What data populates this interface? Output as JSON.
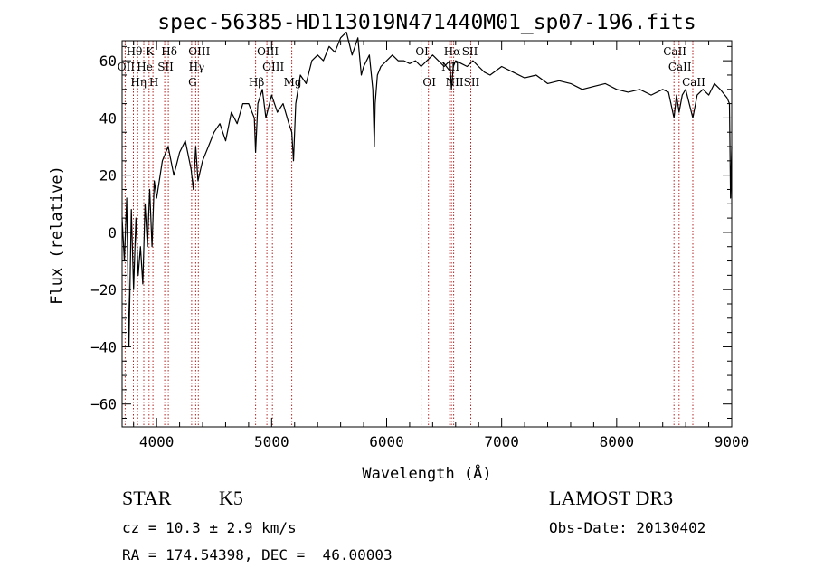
{
  "chart_data": {
    "type": "line",
    "title": "spec-56385-HD113019N471440M01_sp07-196.fits",
    "xlabel": "Wavelength (Å)",
    "ylabel": "Flux (relative)",
    "xlim": [
      3700,
      9000
    ],
    "ylim": [
      -68,
      67
    ],
    "x_ticks": [
      4000,
      5000,
      6000,
      7000,
      8000,
      9000
    ],
    "y_ticks": [
      -60,
      -40,
      -20,
      0,
      20,
      40,
      60
    ],
    "grid": false,
    "series": [
      {
        "name": "flux",
        "color": "#000000",
        "x": [
          3700,
          3720,
          3740,
          3760,
          3780,
          3800,
          3820,
          3840,
          3860,
          3880,
          3900,
          3920,
          3940,
          3960,
          3980,
          4000,
          4050,
          4100,
          4150,
          4200,
          4250,
          4300,
          4320,
          4340,
          4360,
          4400,
          4450,
          4500,
          4550,
          4600,
          4650,
          4700,
          4750,
          4800,
          4850,
          4861,
          4880,
          4920,
          4950,
          5000,
          5050,
          5100,
          5150,
          5175,
          5190,
          5210,
          5250,
          5300,
          5350,
          5400,
          5450,
          5500,
          5550,
          5600,
          5650,
          5700,
          5750,
          5780,
          5800,
          5850,
          5880,
          5893,
          5900,
          5920,
          5950,
          6000,
          6050,
          6100,
          6150,
          6200,
          6250,
          6300,
          6350,
          6400,
          6450,
          6500,
          6550,
          6563,
          6580,
          6600,
          6650,
          6700,
          6750,
          6800,
          6850,
          6900,
          7000,
          7100,
          7200,
          7300,
          7400,
          7500,
          7600,
          7700,
          7800,
          7900,
          8000,
          8100,
          8200,
          8300,
          8400,
          8450,
          8498,
          8520,
          8542,
          8570,
          8600,
          8662,
          8700,
          8750,
          8800,
          8850,
          8900,
          8940,
          8960,
          8980,
          8990,
          9000
        ],
        "y": [
          5,
          -10,
          12,
          -40,
          8,
          -20,
          5,
          -15,
          -5,
          -18,
          10,
          -5,
          15,
          -5,
          18,
          12,
          25,
          30,
          20,
          28,
          32,
          22,
          15,
          30,
          18,
          25,
          30,
          35,
          38,
          32,
          42,
          38,
          45,
          45,
          40,
          28,
          45,
          50,
          40,
          48,
          42,
          45,
          38,
          35,
          25,
          45,
          55,
          52,
          60,
          62,
          60,
          65,
          63,
          68,
          70,
          62,
          68,
          55,
          58,
          62,
          50,
          30,
          45,
          55,
          58,
          60,
          62,
          60,
          60,
          59,
          60,
          58,
          60,
          62,
          60,
          58,
          60,
          50,
          58,
          60,
          59,
          58,
          60,
          58,
          56,
          55,
          58,
          56,
          54,
          55,
          52,
          53,
          52,
          50,
          51,
          52,
          50,
          49,
          50,
          48,
          50,
          49,
          40,
          48,
          42,
          48,
          50,
          40,
          48,
          50,
          48,
          52,
          50,
          48,
          47,
          45,
          12,
          30
        ]
      }
    ],
    "line_labels": [
      {
        "label": "Hθ",
        "x": 3798,
        "row": 1
      },
      {
        "label": "K",
        "x": 3934,
        "row": 1
      },
      {
        "label": "Hδ",
        "x": 4102,
        "row": 1
      },
      {
        "label": "OIII",
        "x": 4363,
        "row": 1
      },
      {
        "label": "OIII",
        "x": 4959,
        "row": 1
      },
      {
        "label": "OI",
        "x": 6300,
        "row": 1
      },
      {
        "label": "Hα",
        "x": 6563,
        "row": 1
      },
      {
        "label": "SII",
        "x": 6716,
        "row": 1
      },
      {
        "label": "CaII",
        "x": 8498,
        "row": 1
      },
      {
        "label": "OII",
        "x": 3727,
        "row": 2
      },
      {
        "label": "He",
        "x": 3889,
        "row": 2
      },
      {
        "label": "SII",
        "x": 4070,
        "row": 2
      },
      {
        "label": "Hγ",
        "x": 4340,
        "row": 2
      },
      {
        "label": "OIII",
        "x": 5007,
        "row": 2
      },
      {
        "label": "NII",
        "x": 6548,
        "row": 2
      },
      {
        "label": "CaII",
        "x": 8542,
        "row": 2
      },
      {
        "label": "Hη",
        "x": 3835,
        "row": 3
      },
      {
        "label": "H",
        "x": 3968,
        "row": 3
      },
      {
        "label": "G",
        "x": 4305,
        "row": 3
      },
      {
        "label": "Hβ",
        "x": 4861,
        "row": 3
      },
      {
        "label": "Mg",
        "x": 5175,
        "row": 3
      },
      {
        "label": "OI",
        "x": 6363,
        "row": 3
      },
      {
        "label": "NII",
        "x": 6583,
        "row": 3
      },
      {
        "label": "SII",
        "x": 6731,
        "row": 3
      },
      {
        "label": "CaII",
        "x": 8662,
        "row": 3
      }
    ]
  },
  "info": {
    "object_class": "STAR",
    "subclass": "K5",
    "survey": "LAMOST DR3",
    "redshift": "cz = 10.3 ± 2.9 km/s",
    "obs_date": "Obs-Date: 20130402",
    "coords": "RA = 174.54398, DEC =  46.00003"
  },
  "colors": {
    "line_marker": "#b22222",
    "spectrum": "#000000",
    "axis": "#000000"
  }
}
